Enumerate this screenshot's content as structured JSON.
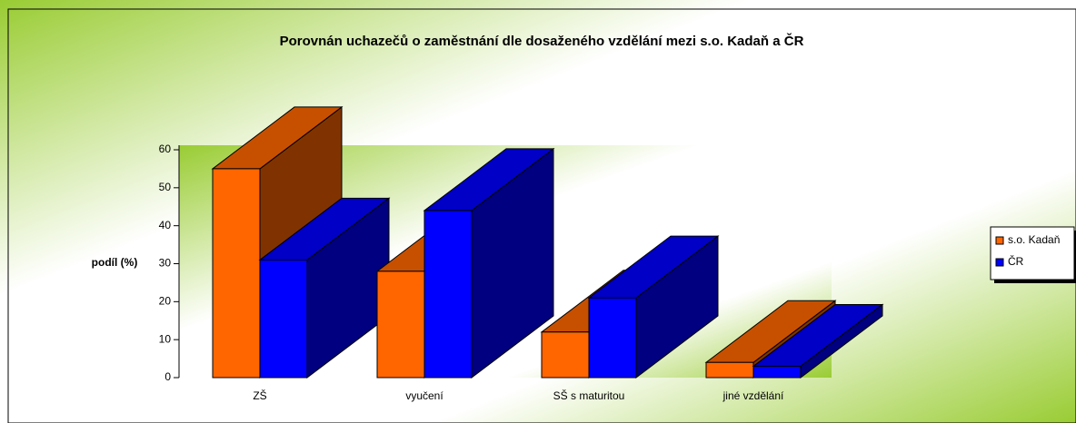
{
  "chart_data": {
    "type": "bar3d",
    "title": "Porovnán uchazečů o zaměstnání dle dosaženého vzdělání mezi s.o. Kadaň a ČR",
    "y_label": "podíl (%)",
    "categories": [
      "ZŠ",
      "vyučení",
      "SŠ s maturitou",
      "jiné vzdělání"
    ],
    "series": [
      {
        "name": "s.o. Kadaň",
        "color": "#ff6600",
        "values": [
          55,
          28,
          12,
          4
        ]
      },
      {
        "name": "ČR",
        "color": "#0000ff",
        "values": [
          31,
          44,
          21,
          3
        ]
      }
    ],
    "ylim": [
      0,
      60
    ],
    "yticks": [
      0,
      10,
      20,
      30,
      40,
      50,
      60
    ],
    "legend": "right"
  }
}
